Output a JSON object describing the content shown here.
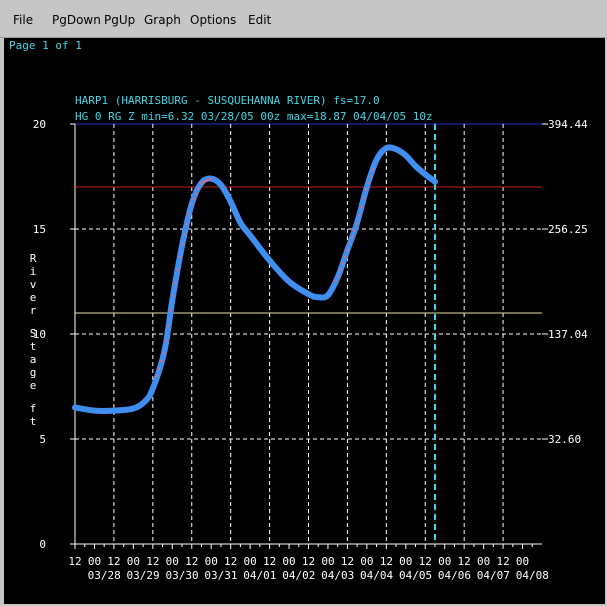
{
  "menu": [
    "File",
    "PgDown",
    "PgUp",
    "Graph",
    "Options",
    "Edit"
  ],
  "page_indicator": "Page 1 of 1",
  "colors": {
    "background": "#000000",
    "grid": "#ffffff",
    "series": "#3f8ef0",
    "observed_marks": "#ff6060",
    "flood_stage_line": "#c81e1e",
    "action_stage_line": "#e8e0a8",
    "current_time_line": "#3fd7f0",
    "title": "#44d6e6",
    "top_frame_line": "#2030d0"
  },
  "chart_data": {
    "type": "line",
    "title": "HARP1 (HARRISBURG - SUSQUEHANNA RIVER) fs=17.0",
    "subtitle": "HG 0 RG Z min=6.32 03/28/05 00z max=18.87 04/04/05 10z",
    "ylabel": "River Stage ft",
    "ylim": [
      0,
      20
    ],
    "yticks": [
      0,
      5,
      10,
      15,
      20
    ],
    "xlim_days_from_0328_00z": [
      -0.5,
      11.5
    ],
    "x_hour_ticks": [
      "12",
      "00",
      "12",
      "00",
      "12",
      "00",
      "12",
      "00",
      "12",
      "00",
      "12",
      "00",
      "12",
      "00",
      "12",
      "00",
      "12",
      "00",
      "12",
      "00",
      "12",
      "00",
      "12",
      "00"
    ],
    "x_date_labels": [
      "03/28",
      "03/29",
      "03/30",
      "03/31",
      "04/01",
      "04/02",
      "04/03",
      "04/04",
      "04/05",
      "04/06",
      "04/07",
      "04/08"
    ],
    "right_axis_labels": [
      {
        "y": 5,
        "label": "32.60"
      },
      {
        "y": 10,
        "label": "137.04"
      },
      {
        "y": 15,
        "label": "256.25"
      },
      {
        "y": 20,
        "label": "394.44"
      }
    ],
    "reference_lines": [
      {
        "y": 17.0,
        "kind": "flood_stage"
      },
      {
        "y": 11.0,
        "kind": "action_stage"
      }
    ],
    "current_time_day": 8.75,
    "series": [
      {
        "x": [
          -0.5,
          0.0,
          0.5,
          1.0,
          1.3,
          1.5,
          1.8,
          2.0,
          2.25,
          2.5,
          2.75,
          3.0,
          3.25,
          3.5,
          3.75,
          4.0,
          4.5,
          5.0,
          5.5,
          5.75,
          6.0,
          6.25,
          6.5,
          6.75,
          7.0,
          7.25,
          7.5,
          7.75,
          8.0,
          8.25,
          8.5,
          8.75
        ],
        "y": [
          6.5,
          6.35,
          6.35,
          6.45,
          6.8,
          7.4,
          9.2,
          11.6,
          14.2,
          16.2,
          17.2,
          17.4,
          17.1,
          16.3,
          15.3,
          14.7,
          13.5,
          12.5,
          11.9,
          11.75,
          11.85,
          12.7,
          14.0,
          15.3,
          17.0,
          18.3,
          18.85,
          18.8,
          18.5,
          18.0,
          17.6,
          17.25
        ]
      }
    ],
    "observed_segments": [
      [
        1.6,
        3.0
      ],
      [
        6.2,
        7.2
      ]
    ]
  }
}
